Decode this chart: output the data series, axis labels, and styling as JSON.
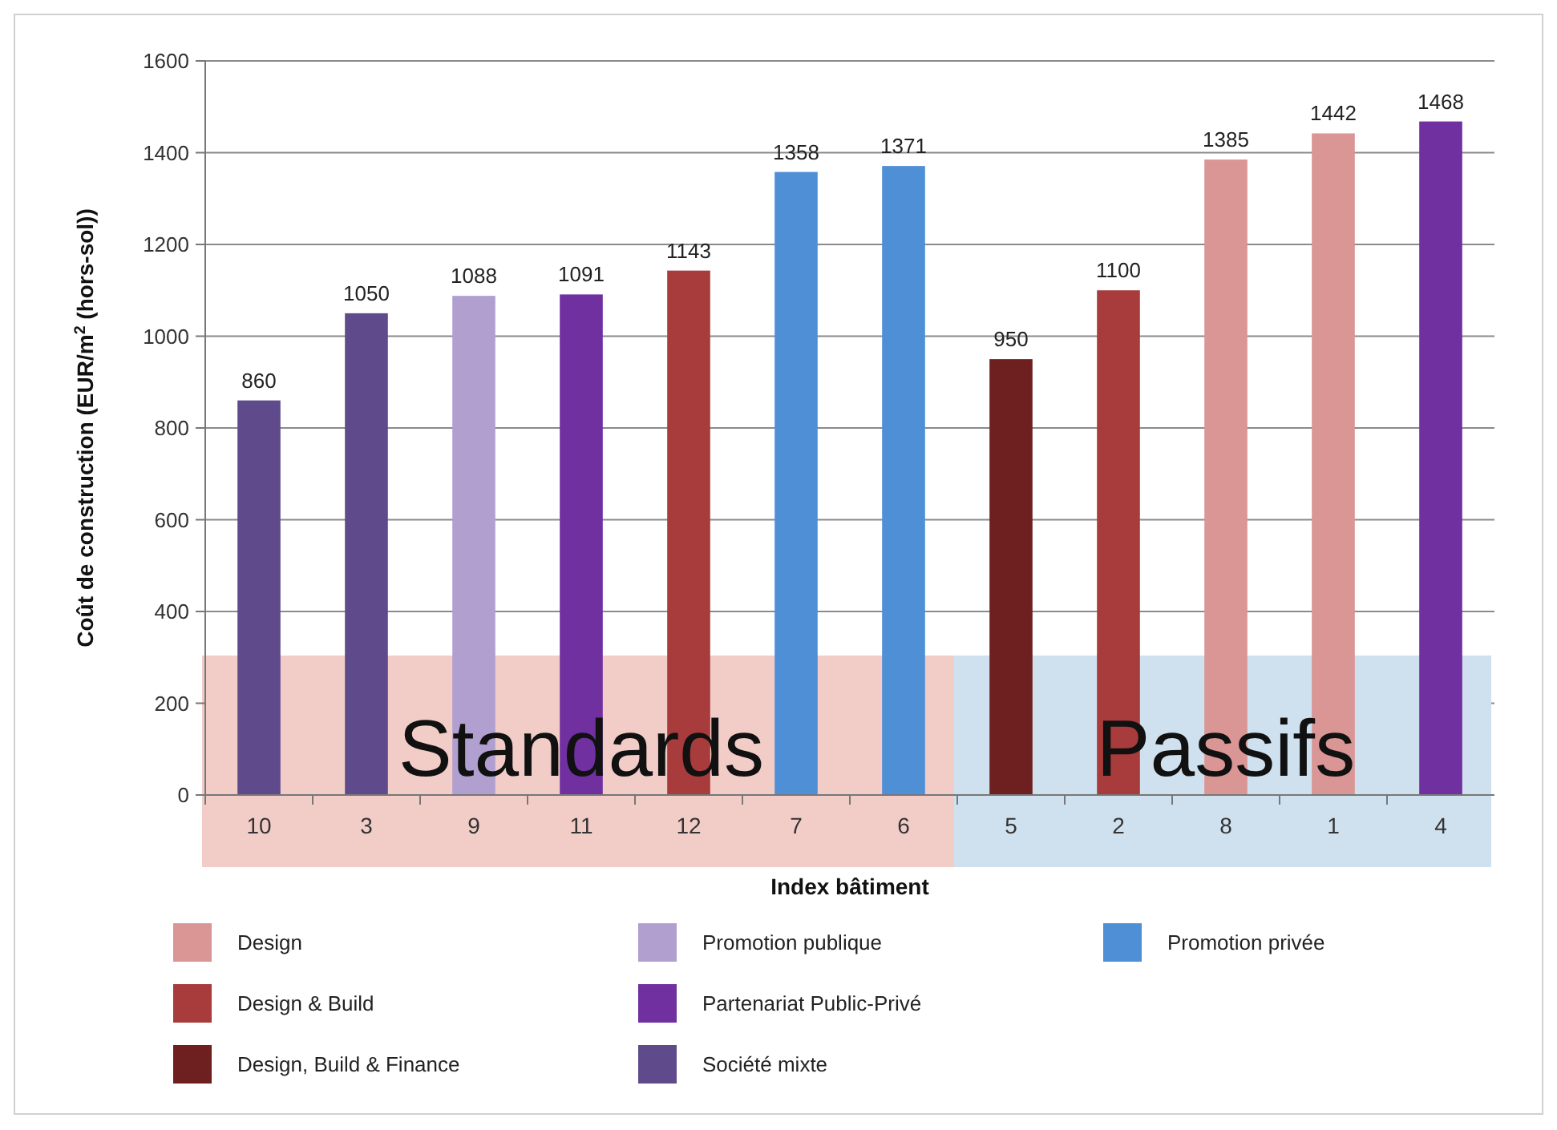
{
  "chart_data": {
    "type": "bar",
    "xlabel": "Index bâtiment",
    "ylabel": "Coût de construction (EUR/m$^{2}$ (hors-sol))",
    "categories": [
      "10",
      "3",
      "9",
      "11",
      "12",
      "7",
      "6",
      "5",
      "2",
      "8",
      "1",
      "4"
    ],
    "stacked": true,
    "data_labels": true,
    "grid": "y",
    "legend": "bottom",
    "ylim": [
      0,
      1600
    ],
    "yticks": [
      0,
      200,
      400,
      600,
      800,
      1000,
      1200,
      1400,
      1600
    ],
    "series": [
      {
        "name": "Design",
        "color": "#d99694",
        "values": [
          null,
          null,
          null,
          null,
          null,
          null,
          null,
          null,
          null,
          1385,
          1442,
          null
        ]
      },
      {
        "name": "Design & Build",
        "color": "#a83b3b",
        "values": [
          null,
          null,
          null,
          null,
          1143,
          null,
          null,
          null,
          1100,
          null,
          null,
          null
        ]
      },
      {
        "name": "Design, Build & Finance",
        "color": "#6e2020",
        "values": [
          null,
          null,
          null,
          null,
          null,
          null,
          null,
          950,
          null,
          null,
          null,
          null
        ]
      },
      {
        "name": "Promotion publique",
        "color": "#b1a0cf",
        "values": [
          null,
          null,
          1088,
          null,
          null,
          null,
          null,
          null,
          null,
          null,
          null,
          null
        ]
      },
      {
        "name": "Partenariat Public-Privé",
        "color": "#7030a0",
        "values": [
          null,
          null,
          null,
          1091,
          null,
          null,
          null,
          null,
          null,
          null,
          null,
          1468
        ]
      },
      {
        "name": "Société mixte",
        "color": "#5f4b8b",
        "values": [
          860,
          1050,
          null,
          null,
          null,
          null,
          null,
          null,
          null,
          null,
          null,
          null
        ]
      },
      {
        "name": "Promotion privée",
        "color": "#4f8fd6",
        "values": [
          null,
          null,
          null,
          null,
          null,
          1358,
          1371,
          null,
          null,
          null,
          null,
          null
        ]
      }
    ],
    "bands": [
      {
        "axis": "x",
        "from": "10",
        "to": "6",
        "label": "Standards",
        "color": "#f2cdc8"
      },
      {
        "axis": "x",
        "from": "5",
        "to": "4",
        "label": "Passifs",
        "color": "#cfe0ee"
      }
    ]
  }
}
